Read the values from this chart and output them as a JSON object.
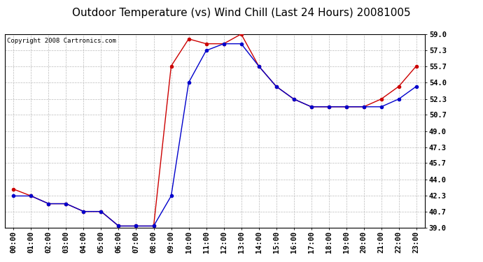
{
  "title": "Outdoor Temperature (vs) Wind Chill (Last 24 Hours) 20081005",
  "copyright": "Copyright 2008 Cartronics.com",
  "x_labels": [
    "00:00",
    "01:00",
    "02:00",
    "03:00",
    "04:00",
    "05:00",
    "06:00",
    "07:00",
    "08:00",
    "09:00",
    "10:00",
    "11:00",
    "12:00",
    "13:00",
    "14:00",
    "15:00",
    "16:00",
    "17:00",
    "18:00",
    "19:00",
    "20:00",
    "21:00",
    "22:00",
    "23:00"
  ],
  "temp_red": [
    43.0,
    42.3,
    41.5,
    41.5,
    40.7,
    40.7,
    39.2,
    39.2,
    39.2,
    55.7,
    58.5,
    58.0,
    58.0,
    59.0,
    55.7,
    53.6,
    52.3,
    51.5,
    51.5,
    51.5,
    51.5,
    52.3,
    53.6,
    55.7
  ],
  "wind_blue": [
    42.3,
    42.3,
    41.5,
    41.5,
    40.7,
    40.7,
    39.2,
    39.2,
    39.2,
    42.3,
    54.0,
    57.3,
    58.0,
    58.0,
    55.7,
    53.6,
    52.3,
    51.5,
    51.5,
    51.5,
    51.5,
    51.5,
    52.3,
    53.6
  ],
  "ylim_min": 39.0,
  "ylim_max": 59.0,
  "yticks": [
    39.0,
    40.7,
    42.3,
    44.0,
    45.7,
    47.3,
    49.0,
    50.7,
    52.3,
    54.0,
    55.7,
    57.3,
    59.0
  ],
  "bg_color": "#ffffff",
  "plot_bg": "#ffffff",
  "grid_color": "#bbbbbb",
  "red_color": "#cc0000",
  "blue_color": "#0000cc",
  "title_fontsize": 11,
  "tick_fontsize": 7.5,
  "copyright_fontsize": 6.5
}
